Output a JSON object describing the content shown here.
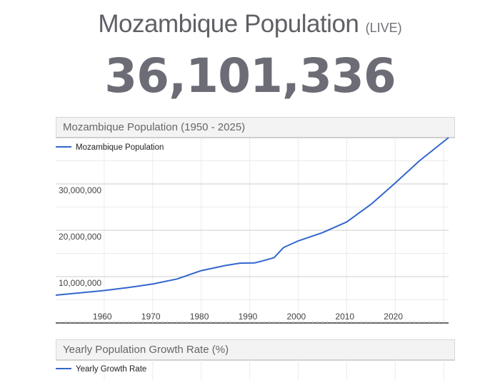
{
  "header": {
    "title": "Mozambique Population",
    "live_label": "(LIVE)",
    "population": "36,101,336"
  },
  "colors": {
    "line": "#3366cc",
    "title": "#5f5f66",
    "number": "#6c6c76"
  },
  "chart_data": [
    {
      "type": "line",
      "title": "Mozambique Population (1950 - 2025)",
      "legend": "top-left",
      "grid": true,
      "xlim": [
        1950,
        2031
      ],
      "ylim": [
        0,
        40000000
      ],
      "x_ticks": [
        "1960",
        "1970",
        "1980",
        "1990",
        "2000",
        "2010",
        "2020"
      ],
      "y_ticks": [
        "10,000,000",
        "20,000,000",
        "30,000,000"
      ],
      "series": [
        {
          "name": "Mozambique Population",
          "x": [
            1950,
            1955,
            1960,
            1965,
            1970,
            1975,
            1980,
            1985,
            1988,
            1991,
            1993,
            1995,
            1997,
            2000,
            2005,
            2010,
            2015,
            2020,
            2025,
            2031
          ],
          "y": [
            6000000,
            6500000,
            7000000,
            7650000,
            8400000,
            9500000,
            11300000,
            12400000,
            12900000,
            12950000,
            13500000,
            14100000,
            16300000,
            17700000,
            19500000,
            21800000,
            25600000,
            30200000,
            35000000,
            40000000
          ]
        }
      ]
    },
    {
      "type": "line",
      "title": "Yearly Population Growth Rate (%)",
      "legend": "top-left",
      "grid": true,
      "series": [
        {
          "name": "Yearly Growth Rate",
          "x": [],
          "y": []
        }
      ]
    }
  ]
}
